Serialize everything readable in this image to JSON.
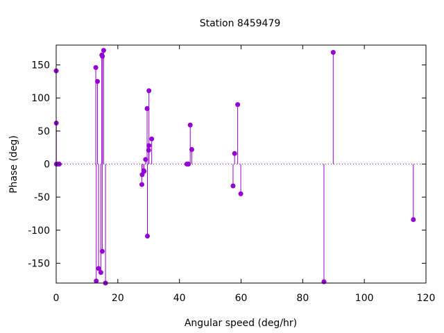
{
  "chart_data": {
    "type": "scatter",
    "style": "impulses-with-points",
    "title": "Station 8459479",
    "xlabel": "Angular speed (deg/hr)",
    "ylabel": "Phase (deg)",
    "xlim": [
      0,
      120
    ],
    "ylim": [
      -180,
      180
    ],
    "xticks": [
      0,
      20,
      40,
      60,
      80,
      100,
      120
    ],
    "yticks": [
      -150,
      -100,
      -50,
      0,
      50,
      100,
      150
    ],
    "zero_line": "dotted",
    "grid": false,
    "legend": "none",
    "color": "#9400d3",
    "points": [
      {
        "x": 0.0,
        "y": 141
      },
      {
        "x": 0.04,
        "y": 62
      },
      {
        "x": 0.08,
        "y": 0
      },
      {
        "x": 0.5,
        "y": 0
      },
      {
        "x": 1.0,
        "y": 0
      },
      {
        "x": 12.85,
        "y": 146
      },
      {
        "x": 13.0,
        "y": -177
      },
      {
        "x": 13.4,
        "y": 125
      },
      {
        "x": 13.75,
        "y": -158
      },
      {
        "x": 14.5,
        "y": -164
      },
      {
        "x": 14.8,
        "y": 165
      },
      {
        "x": 14.95,
        "y": -132
      },
      {
        "x": 15.0,
        "y": 163
      },
      {
        "x": 15.4,
        "y": 172
      },
      {
        "x": 16.0,
        "y": -180
      },
      {
        "x": 27.8,
        "y": -31
      },
      {
        "x": 27.9,
        "y": -16
      },
      {
        "x": 28.4,
        "y": -10
      },
      {
        "x": 28.5,
        "y": -11
      },
      {
        "x": 29.0,
        "y": 7
      },
      {
        "x": 29.5,
        "y": 84
      },
      {
        "x": 29.6,
        "y": -109
      },
      {
        "x": 30.0,
        "y": 21
      },
      {
        "x": 30.1,
        "y": 28
      },
      {
        "x": 30.1,
        "y": 111
      },
      {
        "x": 31.0,
        "y": 38
      },
      {
        "x": 42.4,
        "y": 0
      },
      {
        "x": 42.9,
        "y": 0
      },
      {
        "x": 43.5,
        "y": 59
      },
      {
        "x": 44.0,
        "y": 22
      },
      {
        "x": 57.4,
        "y": -33
      },
      {
        "x": 57.9,
        "y": 16
      },
      {
        "x": 58.9,
        "y": 90
      },
      {
        "x": 59.9,
        "y": -45
      },
      {
        "x": 86.9,
        "y": -178
      },
      {
        "x": 89.9,
        "y": 169
      },
      {
        "x": 115.9,
        "y": -84
      }
    ]
  }
}
